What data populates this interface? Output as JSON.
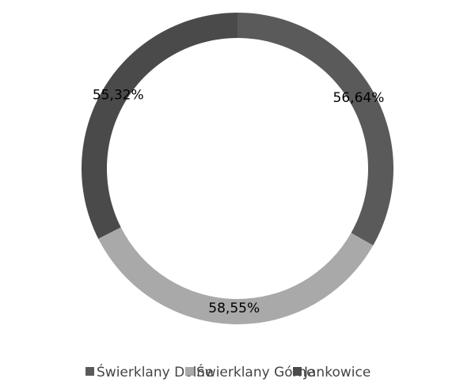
{
  "chart_data": {
    "type": "doughnut",
    "categories": [
      "Świerklany Dolne",
      "Świerklany Górne",
      "Jankowice"
    ],
    "values": [
      56.64,
      58.55,
      55.32
    ],
    "value_labels": [
      "56,64%",
      "58,55%",
      "55,32%"
    ],
    "colors": [
      "#5a5a5a",
      "#a9a9a9",
      "#4a4a4a"
    ],
    "legend": "bottom"
  }
}
